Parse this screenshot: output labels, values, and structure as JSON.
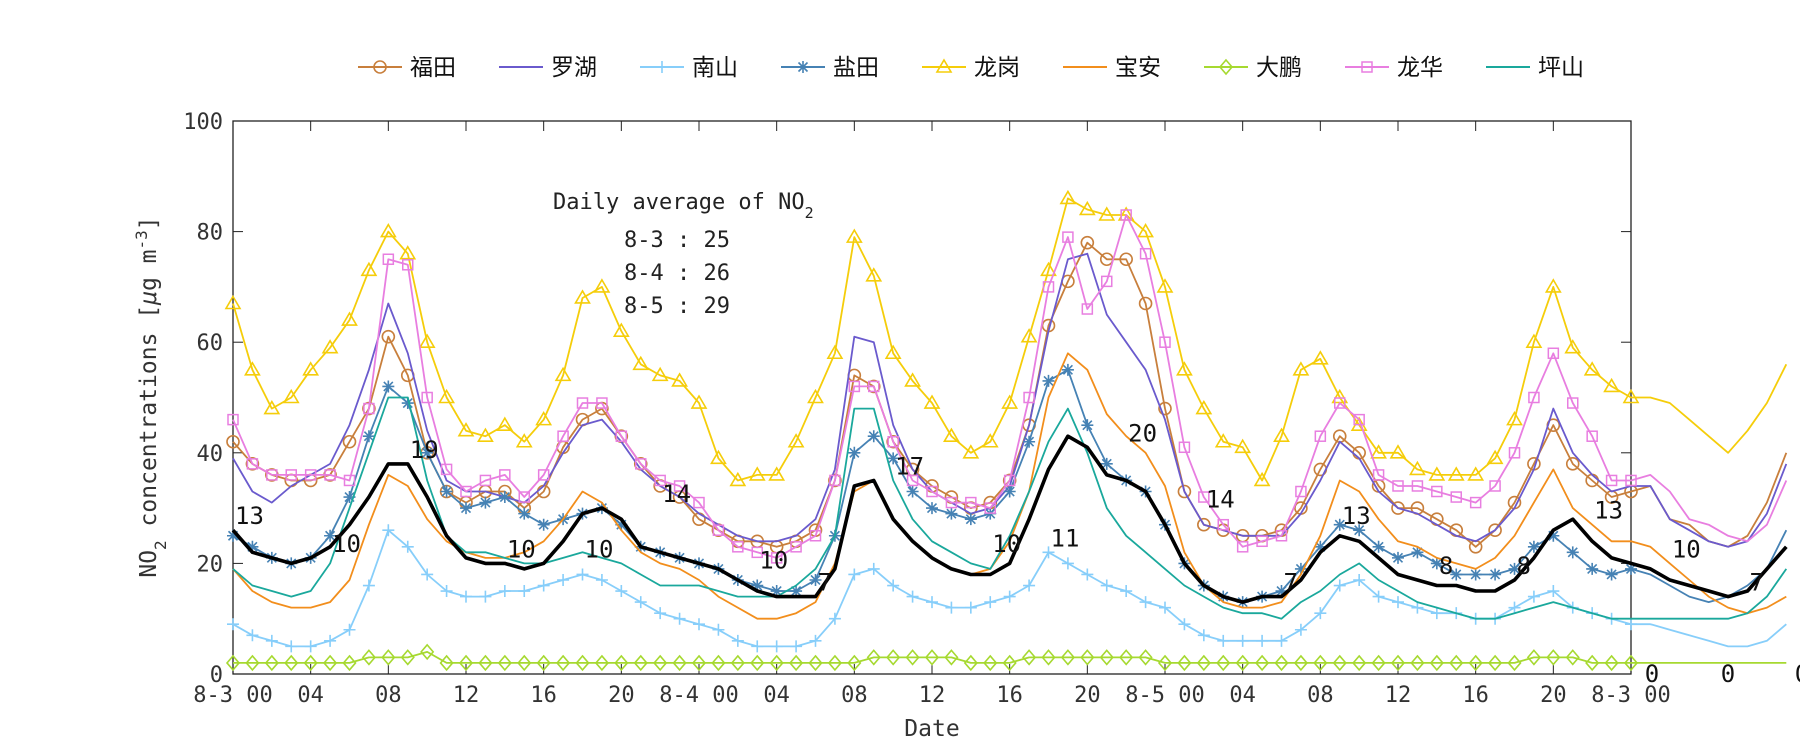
{
  "chart_data": {
    "type": "line",
    "xlabel": "Date",
    "ylabel_parts": [
      "NO",
      "2",
      " concentrations [",
      "μ",
      "g m",
      "-3",
      "]"
    ],
    "ylim": [
      0,
      100
    ],
    "y_ticks": [
      0,
      20,
      40,
      60,
      80,
      100
    ],
    "x_range": [
      0,
      72
    ],
    "x_ticks": [
      {
        "x": 0,
        "label": "8-3 00"
      },
      {
        "x": 4,
        "label": "04"
      },
      {
        "x": 8,
        "label": "08"
      },
      {
        "x": 12,
        "label": "12"
      },
      {
        "x": 16,
        "label": "16"
      },
      {
        "x": 20,
        "label": "20"
      },
      {
        "x": 24,
        "label": "8-4 00"
      },
      {
        "x": 28,
        "label": "04"
      },
      {
        "x": 32,
        "label": "08"
      },
      {
        "x": 36,
        "label": "12"
      },
      {
        "x": 40,
        "label": "16"
      },
      {
        "x": 44,
        "label": "20"
      },
      {
        "x": 48,
        "label": "8-5 00"
      },
      {
        "x": 52,
        "label": "04"
      },
      {
        "x": 56,
        "label": "08"
      },
      {
        "x": 60,
        "label": "12"
      },
      {
        "x": 64,
        "label": "16"
      },
      {
        "x": 68,
        "label": "20"
      },
      {
        "x": 72,
        "label": "8-3 00"
      }
    ],
    "overflow_zero_labels": [
      "0",
      "0",
      "0"
    ],
    "series": [
      {
        "name": "福田",
        "color": "#c87f3c",
        "marker": "circle",
        "values": [
          42,
          38,
          36,
          35,
          35,
          36,
          42,
          48,
          61,
          54,
          40,
          33,
          31,
          33,
          33,
          30,
          33,
          41,
          46,
          48,
          43,
          38,
          34,
          32,
          28,
          26,
          24,
          24,
          23,
          24,
          26,
          35,
          54,
          52,
          42,
          37,
          34,
          32,
          30,
          31,
          35,
          45,
          63,
          71,
          78,
          75,
          75,
          67,
          48,
          33,
          27,
          26,
          25,
          25,
          26,
          30,
          37,
          43,
          40,
          34,
          30,
          30,
          28,
          26,
          23,
          26,
          31,
          38,
          45,
          38,
          35,
          32,
          33,
          34,
          28,
          27,
          24,
          23,
          25,
          31,
          40
        ]
      },
      {
        "name": "罗湖",
        "color": "#6a5acd",
        "marker": "none",
        "values": [
          39,
          33,
          31,
          34,
          36,
          38,
          45,
          55,
          67,
          58,
          44,
          35,
          33,
          33,
          32,
          31,
          34,
          40,
          45,
          46,
          42,
          37,
          34,
          32,
          29,
          27,
          25,
          24,
          24,
          25,
          28,
          37,
          61,
          60,
          45,
          37,
          33,
          31,
          29,
          30,
          34,
          45,
          62,
          75,
          76,
          65,
          60,
          55,
          46,
          33,
          27,
          26,
          25,
          25,
          25,
          29,
          35,
          42,
          39,
          33,
          30,
          29,
          27,
          25,
          24,
          26,
          30,
          37,
          48,
          40,
          36,
          33,
          34,
          34,
          28,
          26,
          24,
          23,
          24,
          29,
          38
        ]
      },
      {
        "name": "南山",
        "color": "#87cefa",
        "marker": "plus",
        "values": [
          9,
          7,
          6,
          5,
          5,
          6,
          8,
          16,
          26,
          23,
          18,
          15,
          14,
          14,
          15,
          15,
          16,
          17,
          18,
          17,
          15,
          13,
          11,
          10,
          9,
          8,
          6,
          5,
          5,
          5,
          6,
          10,
          18,
          19,
          16,
          14,
          13,
          12,
          12,
          13,
          14,
          16,
          22,
          20,
          18,
          16,
          15,
          13,
          12,
          9,
          7,
          6,
          6,
          6,
          6,
          8,
          11,
          16,
          17,
          14,
          13,
          12,
          11,
          11,
          10,
          10,
          12,
          14,
          15,
          12,
          11,
          10,
          9,
          9,
          8,
          7,
          6,
          5,
          5,
          6,
          9
        ]
      },
      {
        "name": "盐田",
        "color": "#4682b4",
        "marker": "asterisk",
        "values": [
          25,
          23,
          21,
          20,
          21,
          25,
          32,
          43,
          52,
          49,
          40,
          33,
          30,
          31,
          32,
          29,
          27,
          28,
          29,
          30,
          27,
          23,
          22,
          21,
          20,
          19,
          17,
          16,
          15,
          15,
          17,
          25,
          40,
          43,
          39,
          33,
          30,
          29,
          28,
          29,
          33,
          42,
          53,
          55,
          45,
          38,
          35,
          33,
          27,
          20,
          16,
          14,
          13,
          14,
          15,
          19,
          23,
          27,
          26,
          23,
          21,
          22,
          20,
          18,
          18,
          18,
          19,
          23,
          25,
          22,
          19,
          18,
          19,
          18,
          16,
          14,
          13,
          14,
          16,
          19,
          26
        ]
      },
      {
        "name": "龙岗",
        "color": "#f5cd0a",
        "marker": "triangle",
        "values": [
          67,
          55,
          48,
          50,
          55,
          59,
          64,
          73,
          80,
          76,
          60,
          50,
          44,
          43,
          45,
          42,
          46,
          54,
          68,
          70,
          62,
          56,
          54,
          53,
          49,
          39,
          35,
          36,
          36,
          42,
          50,
          58,
          79,
          72,
          58,
          53,
          49,
          43,
          40,
          42,
          49,
          61,
          73,
          86,
          84,
          83,
          83,
          80,
          70,
          55,
          48,
          42,
          41,
          35,
          43,
          55,
          57,
          50,
          45,
          40,
          40,
          37,
          36,
          36,
          36,
          39,
          46,
          60,
          70,
          59,
          55,
          52,
          50,
          50,
          49,
          46,
          43,
          40,
          44,
          49,
          56
        ]
      },
      {
        "name": "宝安",
        "color": "#f28e1c",
        "marker": "none",
        "values": [
          19,
          15,
          13,
          12,
          12,
          13,
          17,
          27,
          36,
          34,
          28,
          24,
          22,
          21,
          21,
          22,
          24,
          28,
          33,
          31,
          26,
          22,
          20,
          19,
          17,
          14,
          12,
          10,
          10,
          11,
          13,
          20,
          33,
          35,
          28,
          24,
          21,
          19,
          18,
          19,
          24,
          33,
          50,
          58,
          55,
          47,
          43,
          40,
          34,
          22,
          16,
          13,
          12,
          12,
          13,
          18,
          25,
          35,
          33,
          28,
          24,
          23,
          21,
          20,
          19,
          21,
          25,
          31,
          37,
          30,
          27,
          24,
          24,
          23,
          20,
          17,
          14,
          12,
          11,
          12,
          14
        ]
      },
      {
        "name": "大鹏",
        "color": "#a6d930",
        "marker": "diamond",
        "values": [
          2,
          2,
          2,
          2,
          2,
          2,
          2,
          3,
          3,
          3,
          4,
          2,
          2,
          2,
          2,
          2,
          2,
          2,
          2,
          2,
          2,
          2,
          2,
          2,
          2,
          2,
          2,
          2,
          2,
          2,
          2,
          2,
          2,
          3,
          3,
          3,
          3,
          3,
          2,
          2,
          2,
          3,
          3,
          3,
          3,
          3,
          3,
          3,
          2,
          2,
          2,
          2,
          2,
          2,
          2,
          2,
          2,
          2,
          2,
          2,
          2,
          2,
          2,
          2,
          2,
          2,
          2,
          3,
          3,
          3,
          2,
          2,
          2,
          2,
          2,
          2,
          2,
          2,
          2,
          2,
          2
        ]
      },
      {
        "name": "龙华",
        "color": "#e87ee0",
        "marker": "square",
        "values": [
          46,
          38,
          36,
          36,
          36,
          36,
          35,
          48,
          75,
          74,
          50,
          37,
          33,
          35,
          36,
          32,
          36,
          43,
          49,
          49,
          43,
          38,
          35,
          34,
          31,
          26,
          23,
          22,
          21,
          23,
          25,
          35,
          52,
          52,
          42,
          35,
          33,
          31,
          31,
          30,
          35,
          50,
          70,
          79,
          66,
          71,
          83,
          76,
          60,
          41,
          32,
          27,
          23,
          24,
          25,
          33,
          43,
          49,
          46,
          36,
          34,
          34,
          33,
          32,
          31,
          34,
          40,
          50,
          58,
          49,
          43,
          35,
          35,
          36,
          33,
          28,
          27,
          25,
          24,
          27,
          35
        ]
      },
      {
        "name": "坪山",
        "color": "#1aa89c",
        "marker": "none",
        "values": [
          19,
          16,
          15,
          14,
          15,
          20,
          30,
          40,
          50,
          50,
          35,
          25,
          22,
          22,
          21,
          20,
          20,
          21,
          22,
          21,
          20,
          18,
          16,
          16,
          16,
          15,
          14,
          14,
          14,
          16,
          19,
          25,
          48,
          48,
          35,
          28,
          24,
          22,
          20,
          19,
          25,
          33,
          42,
          48,
          40,
          30,
          25,
          22,
          19,
          16,
          14,
          12,
          11,
          11,
          10,
          13,
          15,
          18,
          20,
          17,
          15,
          13,
          12,
          11,
          10,
          10,
          11,
          12,
          13,
          12,
          11,
          10,
          10,
          10,
          10,
          10,
          10,
          10,
          11,
          14,
          19
        ]
      },
      {
        "name": "",
        "color": "#000000",
        "marker": "none",
        "bold": true,
        "values": [
          26,
          22,
          21,
          20,
          21,
          23,
          27,
          32,
          38,
          38,
          32,
          25,
          21,
          20,
          20,
          19,
          20,
          24,
          29,
          30,
          28,
          23,
          22,
          21,
          20,
          19,
          17,
          15,
          14,
          14,
          14,
          19,
          34,
          35,
          28,
          24,
          21,
          19,
          18,
          18,
          20,
          28,
          37,
          43,
          41,
          36,
          35,
          33,
          27,
          20,
          16,
          14,
          13,
          14,
          14,
          17,
          22,
          25,
          24,
          21,
          18,
          17,
          16,
          16,
          15,
          15,
          17,
          21,
          26,
          28,
          24,
          21,
          20,
          19,
          17,
          16,
          15,
          14,
          15,
          19,
          23
        ]
      }
    ],
    "peak_labels": [
      {
        "x": 0,
        "y": 26,
        "text": "13"
      },
      {
        "x": 9,
        "y": 38,
        "text": "19"
      },
      {
        "x": 5,
        "y": 21,
        "text": "10"
      },
      {
        "x": 14,
        "y": 20,
        "text": "10"
      },
      {
        "x": 18,
        "y": 20,
        "text": "10"
      },
      {
        "x": 22,
        "y": 30,
        "text": "14"
      },
      {
        "x": 27,
        "y": 18,
        "text": "10"
      },
      {
        "x": 30,
        "y": 14,
        "text": "7"
      },
      {
        "x": 34,
        "y": 35,
        "text": "17"
      },
      {
        "x": 39,
        "y": 21,
        "text": "10"
      },
      {
        "x": 42,
        "y": 22,
        "text": "11"
      },
      {
        "x": 46,
        "y": 41,
        "text": "20"
      },
      {
        "x": 50,
        "y": 29,
        "text": "14"
      },
      {
        "x": 54,
        "y": 14,
        "text": "7"
      },
      {
        "x": 57,
        "y": 26,
        "text": "13"
      },
      {
        "x": 62,
        "y": 17,
        "text": "8"
      },
      {
        "x": 66,
        "y": 17,
        "text": "8"
      },
      {
        "x": 70,
        "y": 27,
        "text": "13"
      },
      {
        "x": 74,
        "y": 20,
        "text": "10"
      },
      {
        "x": 78,
        "y": 14,
        "text": "7"
      }
    ],
    "annotation": {
      "title_main": "Daily average of NO",
      "title_sub": "2",
      "lines": [
        "8-3 : 25",
        "8-4 : 26",
        "8-5 : 29"
      ]
    },
    "grid": false,
    "legend_placement": "top"
  }
}
